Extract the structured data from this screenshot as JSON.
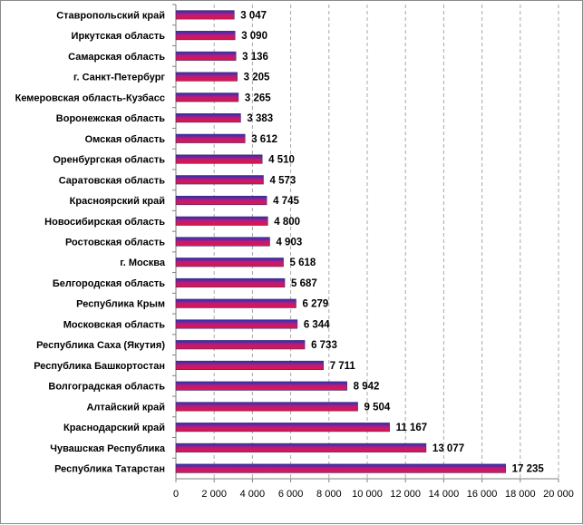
{
  "chart_data": {
    "type": "bar",
    "orientation": "horizontal",
    "categories": [
      "Ставропольский  край",
      "Иркутская  область",
      "Самарская  область",
      "г. Санкт-Петербург",
      "Кемеровская  область-Кузбасс",
      "Воронежская  область",
      "Омская  область",
      "Оренбургская  область",
      "Саратовская  область",
      "Красноярский  край",
      "Новосибирская  область",
      "Ростовская  область",
      "г. Москва",
      "Белгородская  область",
      "Республика  Крым",
      "Московская  область",
      "Республика  Саха (Якутия)",
      "Республика  Башкортостан",
      "Волгоградская  область",
      "Алтайский  край",
      "Краснодарский  край",
      "Чувашская  Республика",
      "Республика  Татарстан"
    ],
    "values": [
      3047,
      3090,
      3136,
      3205,
      3265,
      3383,
      3612,
      4510,
      4573,
      4745,
      4800,
      4903,
      5618,
      5687,
      6279,
      6344,
      6733,
      7711,
      8942,
      9504,
      11167,
      13077,
      17235
    ],
    "value_labels": [
      "3 047",
      "3 090",
      "3 136",
      "3 205",
      "3 265",
      "3 383",
      "3 612",
      "4 510",
      "4 573",
      "4 745",
      "4 800",
      "4 903",
      "5 618",
      "5 687",
      "6 279",
      "6 344",
      "6 733",
      "7 711",
      "8 942",
      "9 504",
      "11 167",
      "13 077",
      "17 235"
    ],
    "x_ticks": [
      "0",
      "2 000",
      "4 000",
      "6 000",
      "8 000",
      "10 000",
      "12 000",
      "14 000",
      "16 000",
      "18 000",
      "20 000"
    ],
    "xlim": [
      0,
      20000
    ],
    "grid": "vertical dashed",
    "colors": {
      "bar_top": "#2b2fb5",
      "bar_mid": "#c01a78",
      "bar_bottom": "#e0173c",
      "grid": "#a8a8a8",
      "axis": "#808080"
    }
  }
}
